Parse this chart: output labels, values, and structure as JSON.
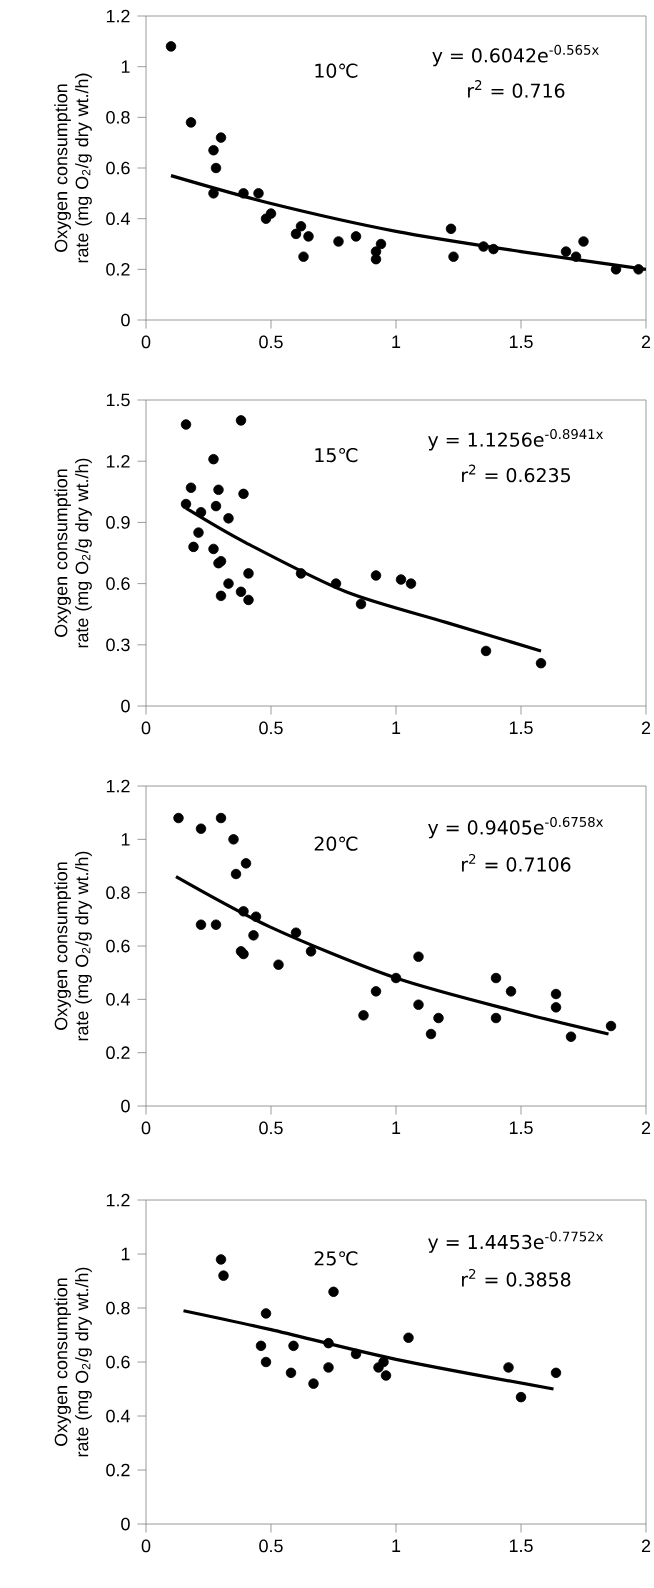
{
  "chart_data": [
    {
      "type": "scatter",
      "ylabel": "Oxygen consumption rate (mg O$_{2}$/g dry wt./h)",
      "xlim": [
        0,
        2
      ],
      "xticks": [
        0,
        0.5,
        1,
        1.5,
        2
      ],
      "ylim": [
        0,
        1.2
      ],
      "yticks": [
        0,
        0.2,
        0.4,
        0.6,
        0.8,
        1,
        1.2
      ],
      "grid": false,
      "annotations": [
        "10℃",
        "y = 0.6042e$^{-0.565x}$",
        "r$^{2}$ = 0.716"
      ],
      "series": [
        {
          "marker": "circle",
          "color": "#000000",
          "x": [
            0.1,
            0.18,
            0.27,
            0.3,
            0.28,
            0.27,
            0.39,
            0.45,
            0.48,
            0.5,
            0.6,
            0.62,
            0.63,
            0.65,
            0.77,
            0.84,
            0.92,
            0.92,
            0.94,
            1.22,
            1.23,
            1.35,
            1.39,
            1.68,
            1.72,
            1.75,
            1.88,
            1.97
          ],
          "values": [
            1.08,
            0.78,
            0.67,
            0.72,
            0.6,
            0.5,
            0.5,
            0.5,
            0.4,
            0.42,
            0.34,
            0.37,
            0.25,
            0.33,
            0.31,
            0.33,
            0.24,
            0.27,
            0.3,
            0.36,
            0.25,
            0.29,
            0.28,
            0.27,
            0.25,
            0.31,
            0.2,
            0.2
          ]
        },
        {
          "type": "line",
          "marker": "none",
          "color": "#000000",
          "x": [
            0.1,
            0.5,
            1.0,
            1.5,
            2.0
          ],
          "values": [
            0.57,
            0.46,
            0.35,
            0.27,
            0.2
          ]
        }
      ]
    },
    {
      "type": "scatter",
      "ylabel": "Oxygen consumption rate (mg O$_{2}$/g dry wt./h)",
      "xlim": [
        0,
        2
      ],
      "xticks": [
        0,
        0.5,
        1,
        1.5,
        2
      ],
      "ylim": [
        0,
        1.5
      ],
      "yticks": [
        0,
        0.3,
        0.6,
        0.9,
        1.2,
        1.5
      ],
      "grid": false,
      "annotations": [
        "15℃",
        "y = 1.1256e$^{-0.8941x}$",
        "r$^{2}$ = 0.6235"
      ],
      "series": [
        {
          "marker": "circle",
          "color": "#000000",
          "x": [
            0.16,
            0.38,
            0.27,
            0.18,
            0.29,
            0.39,
            0.16,
            0.28,
            0.22,
            0.33,
            0.21,
            0.19,
            0.27,
            0.29,
            0.3,
            0.41,
            0.33,
            0.38,
            0.41,
            0.3,
            0.62,
            0.76,
            0.86,
            0.92,
            1.02,
            1.06,
            1.36,
            1.58
          ],
          "values": [
            1.38,
            1.4,
            1.21,
            1.07,
            1.06,
            1.04,
            0.99,
            0.98,
            0.95,
            0.92,
            0.85,
            0.78,
            0.77,
            0.7,
            0.71,
            0.65,
            0.6,
            0.56,
            0.52,
            0.54,
            0.65,
            0.6,
            0.5,
            0.64,
            0.62,
            0.6,
            0.27,
            0.21
          ]
        },
        {
          "type": "line",
          "marker": "none",
          "color": "#000000",
          "x": [
            0.16,
            0.4,
            0.8,
            1.2,
            1.58
          ],
          "values": [
            0.97,
            0.8,
            0.56,
            0.41,
            0.27
          ]
        }
      ]
    },
    {
      "type": "scatter",
      "ylabel": "Oxygen consumption rate (mg O$_{2}$/g dry wt./h)",
      "xlim": [
        0,
        2
      ],
      "xticks": [
        0,
        0.5,
        1,
        1.5,
        2
      ],
      "ylim": [
        0,
        1.2
      ],
      "yticks": [
        0,
        0.2,
        0.4,
        0.6,
        0.8,
        1,
        1.2
      ],
      "grid": false,
      "annotations": [
        "20℃",
        "y = 0.9405e$^{-0.6758x}$",
        "r$^{2}$ = 0.7106"
      ],
      "series": [
        {
          "marker": "circle",
          "color": "#000000",
          "x": [
            0.13,
            0.22,
            0.3,
            0.35,
            0.36,
            0.4,
            0.39,
            0.44,
            0.22,
            0.28,
            0.43,
            0.38,
            0.39,
            0.6,
            0.53,
            0.66,
            0.87,
            0.92,
            1.0,
            1.09,
            1.09,
            1.14,
            1.17,
            1.4,
            1.4,
            1.46,
            1.64,
            1.64,
            1.7,
            1.86
          ],
          "values": [
            1.08,
            1.04,
            1.08,
            1.0,
            0.87,
            0.91,
            0.73,
            0.71,
            0.68,
            0.68,
            0.64,
            0.58,
            0.57,
            0.65,
            0.53,
            0.58,
            0.34,
            0.43,
            0.48,
            0.56,
            0.38,
            0.27,
            0.33,
            0.48,
            0.33,
            0.43,
            0.42,
            0.37,
            0.26,
            0.3
          ]
        },
        {
          "type": "line",
          "marker": "none",
          "color": "#000000",
          "x": [
            0.12,
            0.5,
            1.0,
            1.5,
            1.85
          ],
          "values": [
            0.86,
            0.67,
            0.48,
            0.35,
            0.27
          ]
        }
      ]
    },
    {
      "type": "scatter",
      "ylabel": "Oxygen consumption rate (mg O$_{2}$/g dry wt./h)",
      "xlim": [
        0,
        2
      ],
      "xticks": [
        0,
        0.5,
        1,
        1.5,
        2
      ],
      "ylim": [
        0,
        1.2
      ],
      "yticks": [
        0,
        0.2,
        0.4,
        0.6,
        0.8,
        1,
        1.2
      ],
      "grid": false,
      "annotations": [
        "25℃",
        "y = 1.4453e$^{-0.7752x}$",
        "r$^{2}$ = 0.3858"
      ],
      "series": [
        {
          "marker": "circle",
          "color": "#000000",
          "x": [
            0.3,
            0.31,
            0.48,
            0.46,
            0.48,
            0.59,
            0.58,
            0.67,
            0.73,
            0.73,
            0.75,
            0.84,
            0.93,
            0.95,
            0.96,
            1.05,
            1.45,
            1.5,
            1.64
          ],
          "values": [
            0.98,
            0.92,
            0.78,
            0.66,
            0.6,
            0.66,
            0.56,
            0.52,
            0.67,
            0.58,
            0.86,
            0.63,
            0.58,
            0.6,
            0.55,
            0.69,
            0.58,
            0.47,
            0.56
          ]
        },
        {
          "type": "line",
          "marker": "none",
          "color": "#000000",
          "x": [
            0.15,
            0.5,
            1.0,
            1.63
          ],
          "values": [
            0.79,
            0.72,
            0.61,
            0.5
          ]
        }
      ]
    }
  ]
}
